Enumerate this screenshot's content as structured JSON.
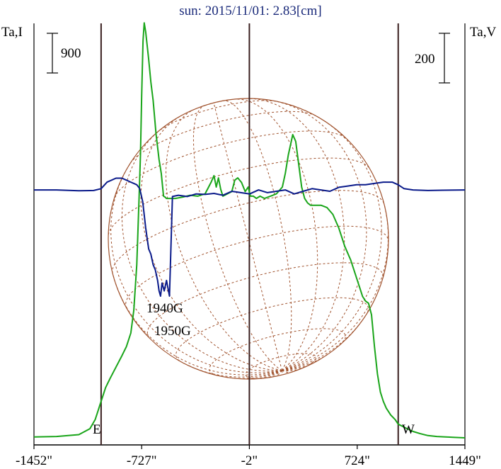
{
  "chart_data": {
    "type": "line",
    "title": "sun: 2015/11/01: 2.83[cm]",
    "ylabel_left": "Ta,I",
    "ylabel_right": "Ta,V",
    "scale_left": "900",
    "scale_right": "200",
    "x_ticks": [
      "-1452\"",
      "-727\"",
      "-2\"",
      "724\"",
      "1449\""
    ],
    "x_tick_values": [
      -1452,
      -727,
      -2,
      724,
      1449
    ],
    "xlim": [
      -1452,
      1449
    ],
    "limb_labels": {
      "east": "E",
      "west": "W"
    },
    "limb_positions": [
      -1000,
      1000
    ],
    "center_position": -2,
    "annotations": [
      "1940G",
      "1950G"
    ],
    "colors": {
      "stokes_I": "#1aa51a",
      "stokes_V": "#0a1a8a",
      "disk": "#a0522d",
      "lines": "#3a1f1f"
    },
    "series": [
      {
        "name": "Ta,I",
        "color": "#1aa51a",
        "axis": "left",
        "x": [
          -1452,
          -1300,
          -1150,
          -1075,
          -1040,
          -1020,
          -1005,
          -990,
          -970,
          -940,
          -900,
          -860,
          -830,
          -800,
          -780,
          -760,
          -745,
          -735,
          -727,
          -718,
          -710,
          -700,
          -690,
          -680,
          -665,
          -650,
          -630,
          -610,
          -595,
          -580,
          -570,
          -560,
          -540,
          -500,
          -450,
          -400,
          -350,
          -300,
          -260,
          -240,
          -225,
          -210,
          -195,
          -180,
          -150,
          -120,
          -100,
          -80,
          -55,
          -30,
          -10,
          5,
          25,
          45,
          70,
          100,
          140,
          180,
          220,
          240,
          260,
          290,
          310,
          330,
          350,
          370,
          390,
          410,
          430,
          450,
          480,
          520,
          560,
          600,
          640,
          680,
          710,
          740,
          760,
          780,
          800,
          820,
          840,
          860,
          880,
          900,
          920,
          950,
          980,
          1000,
          1030,
          1060,
          1100,
          1150,
          1200,
          1260,
          1320,
          1380,
          1449
        ],
        "y": [
          0.2,
          0.3,
          0.7,
          2.0,
          4.0,
          6.0,
          7.5,
          9.0,
          11.0,
          13.0,
          15.5,
          18.0,
          20.0,
          23.0,
          28.0,
          38.0,
          52.0,
          62.0,
          75.0,
          87.0,
          91.0,
          89.0,
          86.0,
          83.0,
          78.0,
          74.0,
          66.5,
          61.0,
          58.0,
          53.0,
          52.8,
          52.5,
          52.5,
          52.5,
          52.8,
          53.2,
          53.0,
          53.5,
          56.0,
          57.5,
          55.0,
          57.0,
          54.5,
          53.0,
          53.5,
          54.0,
          56.5,
          57.0,
          56.0,
          54.0,
          55.0,
          53.0,
          53.0,
          52.5,
          53.0,
          52.5,
          53.0,
          53.5,
          55.0,
          58.0,
          62.0,
          66.5,
          65.0,
          60.0,
          55.0,
          52.5,
          51.5,
          51.0,
          51.0,
          51.0,
          51.0,
          50.5,
          49.0,
          46.0,
          42.0,
          39.0,
          36.0,
          33.0,
          31.0,
          30.0,
          29.5,
          27.0,
          20.0,
          14.0,
          10.0,
          8.0,
          6.5,
          5.0,
          4.0,
          3.0,
          2.5,
          2.0,
          1.4,
          0.9,
          0.5,
          0.3,
          0.2,
          0.1,
          0.0
        ]
      },
      {
        "name": "Ta,V",
        "color": "#0a1a8a",
        "axis": "right",
        "x": [
          -1452,
          -1300,
          -1150,
          -1050,
          -1000,
          -960,
          -900,
          -860,
          -820,
          -800,
          -780,
          -760,
          -740,
          -720,
          -700,
          -690,
          -680,
          -665,
          -650,
          -635,
          -620,
          -610,
          -600,
          -590,
          -575,
          -560,
          -540,
          -520,
          -480,
          -420,
          -360,
          -300,
          -240,
          -180,
          -120,
          -60,
          0,
          60,
          120,
          180,
          240,
          300,
          360,
          420,
          480,
          540,
          600,
          660,
          720,
          780,
          840,
          900,
          960,
          1000,
          1040,
          1100,
          1200,
          1300,
          1449
        ],
        "y": [
          0.5,
          0.5,
          0.2,
          0.3,
          1.0,
          3.5,
          5.0,
          5.0,
          4.0,
          3.5,
          3.0,
          2.5,
          1.0,
          -4.0,
          -14.0,
          -18.0,
          -22.0,
          -24.0,
          -28.0,
          -30.0,
          -34.0,
          -38.0,
          -40.0,
          -35.0,
          -38.0,
          -34.0,
          -40.0,
          -2.0,
          -1.5,
          -2.0,
          -1.0,
          -1.2,
          -0.8,
          -1.5,
          0.0,
          -0.5,
          -1.0,
          0.5,
          -0.5,
          0.0,
          0.5,
          -1.0,
          0.0,
          1.0,
          0.5,
          0.0,
          1.5,
          2.0,
          2.5,
          2.5,
          3.0,
          3.5,
          3.5,
          2.5,
          1.0,
          0.5,
          0.3,
          0.4,
          0.5
        ]
      }
    ]
  }
}
